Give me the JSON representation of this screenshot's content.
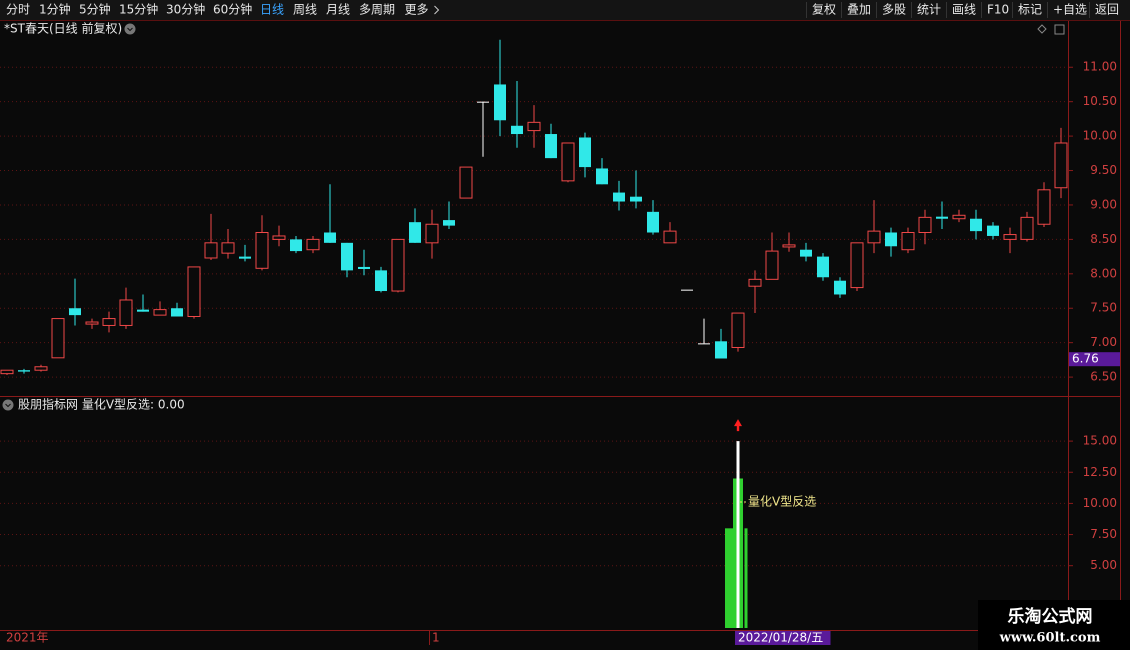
{
  "toolbar": {
    "left": [
      "分时",
      "1分钟",
      "5分钟",
      "15分钟",
      "30分钟",
      "60分钟",
      "日线",
      "周线",
      "月线",
      "多周期",
      "更多"
    ],
    "selected": 6,
    "right": [
      "复权",
      "叠加",
      "多股",
      "统计",
      "画线",
      "F10",
      "标记",
      "+自选",
      "返回"
    ]
  },
  "chart_data": [
    {
      "type": "candlestick",
      "title": "*ST春天(日线 前复权)",
      "categories": [
        "2021年",
        null,
        null,
        null,
        null,
        null,
        null,
        null,
        null,
        null,
        null,
        null,
        null,
        null,
        null,
        null,
        null,
        null,
        null,
        null,
        null,
        null,
        null,
        null,
        null,
        "1",
        null,
        null,
        null,
        null,
        null,
        null,
        null,
        null,
        null,
        null,
        null,
        null,
        null,
        null,
        null,
        null,
        null,
        "2022/01/28/五",
        null,
        null,
        null,
        null,
        null,
        null,
        null,
        null,
        null,
        null,
        null,
        null,
        null,
        null,
        null,
        null,
        null,
        null,
        null
      ],
      "open": [
        6.55,
        6.6,
        6.6,
        6.78,
        7.5,
        7.27,
        7.25,
        7.25,
        7.48,
        7.4,
        7.5,
        7.38,
        8.23,
        8.3,
        8.25,
        8.08,
        8.5,
        8.5,
        8.35,
        8.6,
        8.45,
        8.1,
        8.05,
        7.75,
        8.75,
        8.45,
        8.78,
        9.1,
        10.5,
        10.75,
        10.15,
        10.08,
        10.03,
        9.35,
        9.98,
        9.53,
        9.18,
        9.12,
        8.9,
        8.45,
        7.77,
        6.99,
        7.02,
        6.93,
        7.82,
        7.92,
        8.39,
        8.35,
        8.25,
        7.9,
        7.8,
        8.45,
        8.6,
        8.35,
        8.6,
        8.83,
        8.8,
        8.8,
        8.7,
        8.5,
        8.5,
        8.72,
        9.25
      ],
      "high": [
        6.6,
        6.62,
        6.68,
        7.35,
        7.93,
        7.35,
        7.45,
        7.8,
        7.7,
        7.6,
        7.58,
        8.1,
        8.87,
        8.65,
        8.42,
        8.85,
        8.7,
        8.55,
        8.55,
        9.3,
        8.45,
        8.35,
        8.1,
        8.5,
        8.95,
        8.93,
        9.05,
        9.55,
        10.5,
        11.4,
        10.8,
        10.45,
        10.18,
        9.9,
        10.05,
        9.68,
        9.35,
        9.5,
        9.07,
        8.75,
        7.77,
        7.35,
        7.2,
        7.43,
        8.05,
        8.6,
        8.6,
        8.45,
        8.3,
        7.95,
        8.45,
        9.07,
        8.67,
        8.67,
        8.93,
        9.05,
        8.93,
        8.93,
        8.75,
        8.67,
        8.9,
        9.33,
        10.12
      ],
      "low": [
        6.53,
        6.55,
        6.58,
        6.78,
        7.25,
        7.2,
        7.15,
        7.2,
        7.45,
        7.4,
        7.38,
        7.35,
        8.2,
        8.22,
        8.18,
        8.05,
        8.4,
        8.3,
        8.3,
        8.45,
        7.95,
        7.98,
        7.73,
        7.73,
        8.45,
        8.22,
        8.65,
        9.1,
        9.7,
        10.0,
        9.83,
        9.83,
        9.68,
        9.33,
        9.4,
        9.3,
        8.92,
        8.95,
        8.57,
        8.45,
        7.77,
        6.99,
        6.77,
        6.87,
        7.43,
        7.92,
        8.32,
        8.18,
        7.9,
        7.65,
        7.75,
        8.3,
        8.25,
        8.3,
        8.43,
        8.65,
        8.75,
        8.5,
        8.5,
        8.3,
        8.47,
        8.68,
        9.1
      ],
      "close": [
        6.6,
        6.58,
        6.65,
        7.35,
        7.4,
        7.3,
        7.35,
        7.62,
        7.45,
        7.48,
        7.38,
        8.1,
        8.45,
        8.45,
        8.22,
        8.6,
        8.55,
        8.33,
        8.5,
        8.45,
        8.05,
        8.07,
        7.75,
        8.5,
        8.45,
        8.72,
        8.7,
        9.55,
        10.5,
        10.23,
        10.03,
        10.2,
        9.68,
        9.9,
        9.55,
        9.3,
        9.05,
        9.05,
        8.6,
        8.62,
        7.77,
        6.99,
        6.77,
        7.43,
        7.92,
        8.33,
        8.42,
        8.25,
        7.95,
        7.7,
        8.45,
        8.62,
        8.4,
        8.6,
        8.82,
        8.8,
        8.85,
        8.62,
        8.55,
        8.57,
        8.82,
        9.22,
        9.9
      ],
      "up_color": "#f04848",
      "down_color": "#30e8e8",
      "flat_color": "#ffffff",
      "ylim": [
        6.24,
        11.57
      ],
      "yticks": [
        {
          "value": 6.5,
          "label": "6.50"
        },
        {
          "value": 7,
          "label": "7.00"
        },
        {
          "value": 7.5,
          "label": "7.50"
        },
        {
          "value": 8,
          "label": "8.00"
        },
        {
          "value": 8.5,
          "label": "8.50"
        },
        {
          "value": 9,
          "label": "9.00"
        },
        {
          "value": 9.5,
          "label": "9.50"
        },
        {
          "value": 10,
          "label": "10.00"
        },
        {
          "value": 10.5,
          "label": "10.50"
        },
        {
          "value": 11,
          "label": "11.00"
        }
      ],
      "marker_value": 6.76,
      "grid": true
    },
    {
      "type": "bar",
      "title": "股朋指标网 量化V型反选: 0.00",
      "annotation": "量化V型反选",
      "series": [
        {
          "color": "#2fd02f",
          "values": [
            null,
            null,
            null,
            null,
            null,
            null,
            null,
            null,
            null,
            null,
            null,
            null,
            null,
            null,
            null,
            null,
            null,
            null,
            null,
            null,
            null,
            null,
            null,
            null,
            null,
            null,
            null,
            null,
            null,
            null,
            null,
            null,
            null,
            null,
            null,
            null,
            null,
            null,
            null,
            null,
            null,
            null,
            null,
            8,
            null,
            null,
            null,
            null,
            null,
            null,
            null,
            null,
            null,
            null,
            null,
            null,
            null,
            null,
            null,
            null,
            null,
            null,
            null
          ]
        },
        {
          "color": "#2fd02f",
          "values": [
            null,
            null,
            null,
            null,
            null,
            null,
            null,
            null,
            null,
            null,
            null,
            null,
            null,
            null,
            null,
            null,
            null,
            null,
            null,
            null,
            null,
            null,
            null,
            null,
            null,
            null,
            null,
            null,
            null,
            null,
            null,
            null,
            null,
            null,
            null,
            null,
            null,
            null,
            null,
            null,
            null,
            null,
            null,
            12,
            null,
            null,
            null,
            null,
            null,
            null,
            null,
            null,
            null,
            null,
            null,
            null,
            null,
            null,
            null,
            null,
            null,
            null,
            null
          ]
        },
        {
          "color": "#ffffff",
          "values": [
            null,
            null,
            null,
            null,
            null,
            null,
            null,
            null,
            null,
            null,
            null,
            null,
            null,
            null,
            null,
            null,
            null,
            null,
            null,
            null,
            null,
            null,
            null,
            null,
            null,
            null,
            null,
            null,
            null,
            null,
            null,
            null,
            null,
            null,
            null,
            null,
            null,
            null,
            null,
            null,
            null,
            null,
            null,
            15,
            null,
            null,
            null,
            null,
            null,
            null,
            null,
            null,
            null,
            null,
            null,
            null,
            null,
            null,
            null,
            null,
            null,
            null,
            null
          ]
        }
      ],
      "ylim": [
        0,
        18.3
      ],
      "yticks": [
        {
          "value": 5,
          "label": "5.00"
        },
        {
          "value": 7.5,
          "label": "7.50"
        },
        {
          "value": 10,
          "label": "10.00"
        },
        {
          "value": 12.5,
          "label": "12.50"
        },
        {
          "value": 15,
          "label": "15.00"
        }
      ],
      "grid": true
    }
  ],
  "watermark": {
    "title": "乐淘公式网",
    "url": "www.60lt.com"
  }
}
